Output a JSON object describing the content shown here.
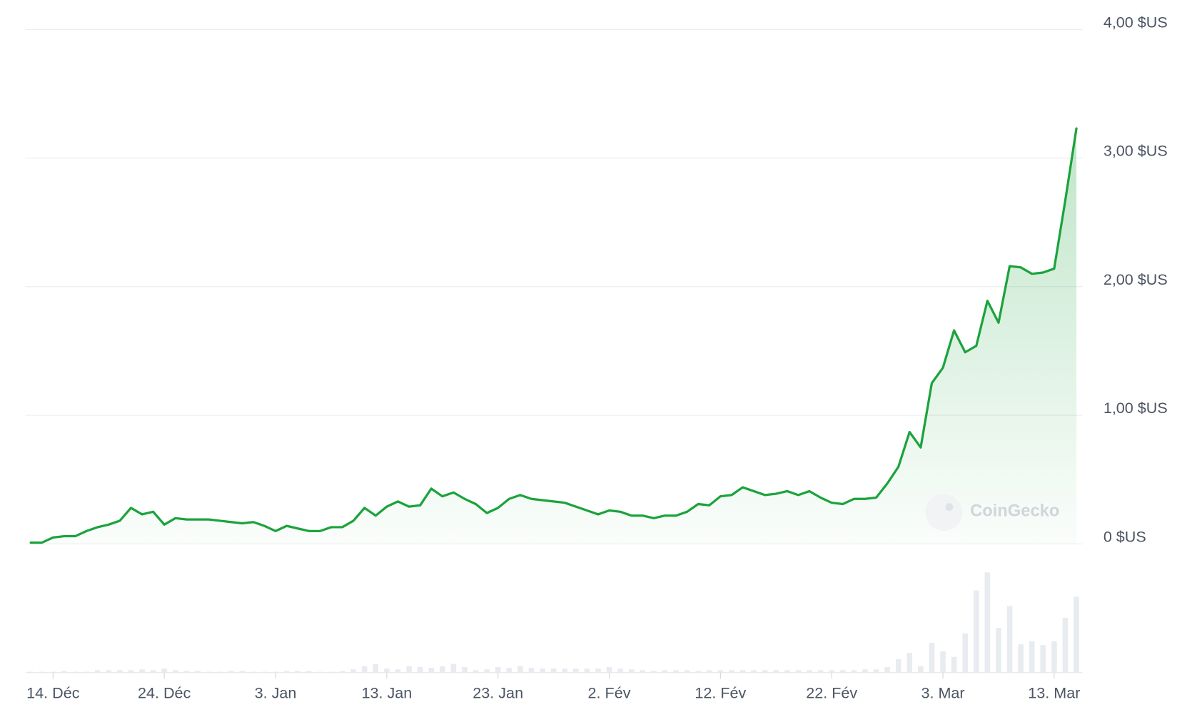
{
  "chart_data": {
    "type": "line",
    "watermark": "CoinGecko",
    "color": "#1ba33c",
    "volume_color": "#e8ebef",
    "grid": true,
    "ylim": [
      0,
      4
    ],
    "yticks": [
      {
        "value": 0,
        "label": "0 $US"
      },
      {
        "value": 1,
        "label": "1,00 $US"
      },
      {
        "value": 2,
        "label": "2,00 $US"
      },
      {
        "value": 3,
        "label": "3,00 $US"
      },
      {
        "value": 4,
        "label": "4,00 $US"
      }
    ],
    "categories": [
      null,
      null,
      "14. Déc",
      null,
      null,
      null,
      null,
      null,
      null,
      null,
      null,
      null,
      "24. Déc",
      null,
      null,
      null,
      null,
      null,
      null,
      null,
      null,
      null,
      "3. Jan",
      null,
      null,
      null,
      null,
      null,
      null,
      null,
      null,
      null,
      "13. Jan",
      null,
      null,
      null,
      null,
      null,
      null,
      null,
      null,
      null,
      "23. Jan",
      null,
      null,
      null,
      null,
      null,
      null,
      null,
      null,
      null,
      "2. Fév",
      null,
      null,
      null,
      null,
      null,
      null,
      null,
      null,
      null,
      "12. Fév",
      null,
      null,
      null,
      null,
      null,
      null,
      null,
      null,
      null,
      "22. Fév",
      null,
      null,
      null,
      null,
      null,
      null,
      null,
      null,
      null,
      "3. Mar",
      null,
      null,
      null,
      null,
      null,
      null,
      null,
      null,
      null,
      "13. Mar",
      null,
      null
    ],
    "values": [
      0.01,
      0.01,
      0.05,
      0.06,
      0.06,
      0.1,
      0.13,
      0.15,
      0.18,
      0.28,
      0.23,
      0.25,
      0.15,
      0.2,
      0.19,
      0.19,
      0.19,
      0.18,
      0.17,
      0.16,
      0.17,
      0.14,
      0.1,
      0.14,
      0.12,
      0.1,
      0.1,
      0.13,
      0.13,
      0.18,
      0.28,
      0.22,
      0.29,
      0.33,
      0.29,
      0.3,
      0.43,
      0.37,
      0.4,
      0.35,
      0.31,
      0.24,
      0.28,
      0.35,
      0.38,
      0.35,
      0.34,
      0.33,
      0.32,
      0.29,
      0.26,
      0.23,
      0.26,
      0.25,
      0.22,
      0.22,
      0.2,
      0.22,
      0.22,
      0.25,
      0.31,
      0.3,
      0.37,
      0.38,
      0.44,
      0.41,
      0.38,
      0.39,
      0.41,
      0.38,
      0.41,
      0.36,
      0.32,
      0.31,
      0.35,
      0.35,
      0.36,
      0.47,
      0.6,
      0.87,
      0.75,
      1.25,
      1.37,
      1.66,
      1.49,
      1.54,
      1.89,
      1.72,
      2.16,
      2.15,
      2.1,
      2.11,
      2.14,
      2.67,
      3.23
    ],
    "volume": [
      1,
      1,
      1,
      2,
      1,
      1,
      3,
      3,
      3,
      3,
      4,
      3,
      5,
      3,
      2,
      2,
      1,
      1,
      2,
      2,
      1,
      1,
      1,
      2,
      2,
      2,
      1,
      1,
      2,
      4,
      8,
      11,
      5,
      4,
      8,
      7,
      6,
      8,
      11,
      7,
      3,
      4,
      7,
      6,
      8,
      6,
      5,
      5,
      5,
      5,
      5,
      5,
      7,
      5,
      4,
      3,
      2,
      3,
      3,
      3,
      2,
      3,
      3,
      3,
      3,
      3,
      3,
      3,
      3,
      3,
      3,
      3,
      3,
      3,
      3,
      4,
      4,
      7,
      17,
      25,
      8,
      38,
      27,
      20,
      50,
      105,
      128,
      57,
      85,
      36,
      40,
      35,
      40,
      70,
      97
    ]
  }
}
